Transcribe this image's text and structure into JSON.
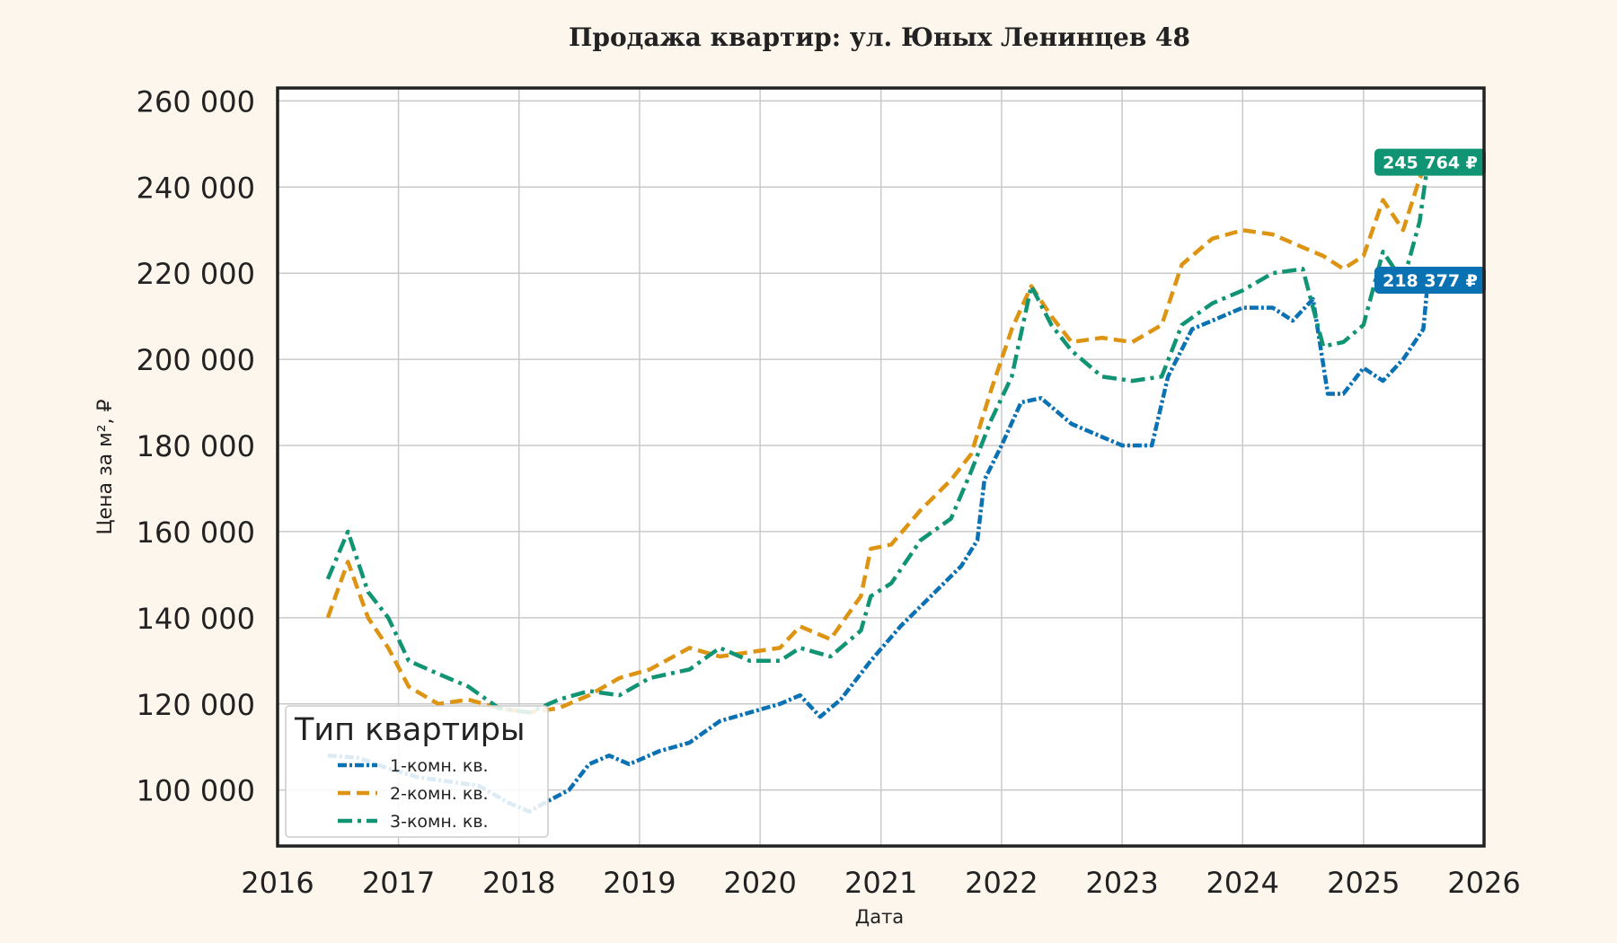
{
  "chart_data": {
    "type": "line",
    "title": "Продажа квартир: ул. Юных Ленинцев 48",
    "xlabel": "Дата",
    "ylabel": "Цена за м², ₽",
    "xlim": [
      "2016-01-01",
      "2026-01-01"
    ],
    "ylim": [
      87000,
      263000
    ],
    "x_ticks": [
      "2016",
      "2017",
      "2018",
      "2019",
      "2020",
      "2021",
      "2022",
      "2023",
      "2024",
      "2025",
      "2026"
    ],
    "y_ticks": [
      100000,
      120000,
      140000,
      160000,
      180000,
      200000,
      220000,
      240000,
      260000
    ],
    "y_tick_labels": [
      "100 000",
      "120 000",
      "140 000",
      "160 000",
      "180 000",
      "200 000",
      "220 000",
      "240 000",
      "260 000"
    ],
    "grid": true,
    "legend": {
      "title": "Тип квартиры",
      "position": "lower-left"
    },
    "series": [
      {
        "name": "1-комн. кв.",
        "color": "#0a72b3",
        "style": "dash-dot-dense",
        "end_label": "218 377 ₽",
        "points": [
          [
            "2016-06-01",
            108000
          ],
          [
            "2016-09-01",
            107500
          ],
          [
            "2016-12-01",
            105000
          ],
          [
            "2017-03-01",
            103000
          ],
          [
            "2017-06-01",
            102000
          ],
          [
            "2017-09-01",
            101000
          ],
          [
            "2017-12-01",
            97000
          ],
          [
            "2018-02-01",
            95000
          ],
          [
            "2018-04-01",
            97500
          ],
          [
            "2018-06-01",
            100000
          ],
          [
            "2018-08-01",
            106000
          ],
          [
            "2018-10-01",
            108000
          ],
          [
            "2018-12-01",
            106000
          ],
          [
            "2019-03-01",
            109000
          ],
          [
            "2019-06-01",
            111000
          ],
          [
            "2019-09-01",
            116000
          ],
          [
            "2019-12-01",
            118000
          ],
          [
            "2020-03-01",
            120000
          ],
          [
            "2020-05-01",
            122000
          ],
          [
            "2020-07-01",
            117000
          ],
          [
            "2020-09-01",
            121000
          ],
          [
            "2020-12-01",
            130000
          ],
          [
            "2021-03-01",
            138000
          ],
          [
            "2021-06-01",
            145000
          ],
          [
            "2021-09-01",
            152000
          ],
          [
            "2021-10-20",
            158000
          ],
          [
            "2021-11-10",
            172000
          ],
          [
            "2022-01-01",
            180000
          ],
          [
            "2022-03-01",
            190000
          ],
          [
            "2022-05-01",
            191000
          ],
          [
            "2022-08-01",
            185000
          ],
          [
            "2022-11-01",
            182000
          ],
          [
            "2023-01-01",
            180000
          ],
          [
            "2023-04-01",
            180000
          ],
          [
            "2023-05-20",
            196000
          ],
          [
            "2023-08-01",
            207000
          ],
          [
            "2023-11-01",
            210000
          ],
          [
            "2024-01-01",
            212000
          ],
          [
            "2024-04-01",
            212000
          ],
          [
            "2024-06-01",
            209000
          ],
          [
            "2024-08-01",
            214000
          ],
          [
            "2024-09-15",
            192000
          ],
          [
            "2024-11-01",
            192000
          ],
          [
            "2025-01-01",
            198000
          ],
          [
            "2025-03-01",
            195000
          ],
          [
            "2025-05-01",
            200000
          ],
          [
            "2025-07-01",
            207000
          ],
          [
            "2025-07-15",
            218377
          ]
        ]
      },
      {
        "name": "2-комн. кв.",
        "color": "#dd9412",
        "style": "dashed",
        "end_label": "",
        "points": [
          [
            "2016-06-01",
            140000
          ],
          [
            "2016-08-01",
            153000
          ],
          [
            "2016-10-01",
            140000
          ],
          [
            "2016-12-01",
            133000
          ],
          [
            "2017-02-01",
            124000
          ],
          [
            "2017-05-01",
            120000
          ],
          [
            "2017-08-01",
            121000
          ],
          [
            "2017-11-01",
            119000
          ],
          [
            "2018-02-01",
            118000
          ],
          [
            "2018-05-01",
            119000
          ],
          [
            "2018-08-01",
            122000
          ],
          [
            "2018-11-01",
            126000
          ],
          [
            "2019-02-01",
            128000
          ],
          [
            "2019-06-01",
            133000
          ],
          [
            "2019-09-01",
            131000
          ],
          [
            "2019-12-01",
            132000
          ],
          [
            "2020-03-01",
            133000
          ],
          [
            "2020-05-01",
            138000
          ],
          [
            "2020-08-01",
            135000
          ],
          [
            "2020-11-01",
            145000
          ],
          [
            "2020-12-01",
            156000
          ],
          [
            "2021-02-01",
            157000
          ],
          [
            "2021-05-01",
            165000
          ],
          [
            "2021-08-01",
            172000
          ],
          [
            "2021-10-01",
            178000
          ],
          [
            "2021-12-01",
            193000
          ],
          [
            "2022-02-01",
            207000
          ],
          [
            "2022-04-01",
            217000
          ],
          [
            "2022-06-01",
            210000
          ],
          [
            "2022-08-01",
            204000
          ],
          [
            "2022-11-01",
            205000
          ],
          [
            "2023-02-01",
            204000
          ],
          [
            "2023-05-01",
            208000
          ],
          [
            "2023-07-01",
            222000
          ],
          [
            "2023-10-01",
            228000
          ],
          [
            "2024-01-01",
            230000
          ],
          [
            "2024-04-01",
            229000
          ],
          [
            "2024-07-01",
            226000
          ],
          [
            "2024-09-01",
            224000
          ],
          [
            "2024-11-01",
            221000
          ],
          [
            "2025-01-01",
            224000
          ],
          [
            "2025-03-01",
            237000
          ],
          [
            "2025-05-01",
            230000
          ],
          [
            "2025-06-20",
            242000
          ],
          [
            "2025-07-15",
            245764
          ]
        ]
      },
      {
        "name": "3-комн. кв.",
        "color": "#119473",
        "style": "dash-dot",
        "end_label": "245 764 ₽",
        "points": [
          [
            "2016-06-01",
            149000
          ],
          [
            "2016-08-01",
            160000
          ],
          [
            "2016-10-01",
            146000
          ],
          [
            "2016-12-01",
            140000
          ],
          [
            "2017-02-01",
            130000
          ],
          [
            "2017-05-01",
            127000
          ],
          [
            "2017-08-01",
            124000
          ],
          [
            "2017-11-01",
            119000
          ],
          [
            "2018-02-01",
            118000
          ],
          [
            "2018-05-01",
            121000
          ],
          [
            "2018-08-01",
            123000
          ],
          [
            "2018-11-01",
            122000
          ],
          [
            "2019-02-01",
            126000
          ],
          [
            "2019-06-01",
            128000
          ],
          [
            "2019-09-01",
            133000
          ],
          [
            "2019-12-01",
            130000
          ],
          [
            "2020-03-01",
            130000
          ],
          [
            "2020-05-01",
            133000
          ],
          [
            "2020-08-01",
            131000
          ],
          [
            "2020-11-01",
            137000
          ],
          [
            "2020-12-01",
            145000
          ],
          [
            "2021-02-01",
            148000
          ],
          [
            "2021-05-01",
            158000
          ],
          [
            "2021-08-01",
            163000
          ],
          [
            "2021-10-01",
            174000
          ],
          [
            "2021-12-01",
            186000
          ],
          [
            "2022-02-01",
            196000
          ],
          [
            "2022-04-01",
            217000
          ],
          [
            "2022-06-01",
            208000
          ],
          [
            "2022-08-01",
            202000
          ],
          [
            "2022-11-01",
            196000
          ],
          [
            "2023-02-01",
            195000
          ],
          [
            "2023-05-01",
            196000
          ],
          [
            "2023-07-01",
            208000
          ],
          [
            "2023-10-01",
            213000
          ],
          [
            "2024-01-01",
            216000
          ],
          [
            "2024-04-01",
            220000
          ],
          [
            "2024-07-01",
            221000
          ],
          [
            "2024-09-01",
            203000
          ],
          [
            "2024-11-01",
            204000
          ],
          [
            "2025-01-01",
            208000
          ],
          [
            "2025-03-01",
            225000
          ],
          [
            "2025-05-01",
            218000
          ],
          [
            "2025-06-20",
            232000
          ],
          [
            "2025-07-15",
            245764
          ]
        ]
      }
    ]
  }
}
